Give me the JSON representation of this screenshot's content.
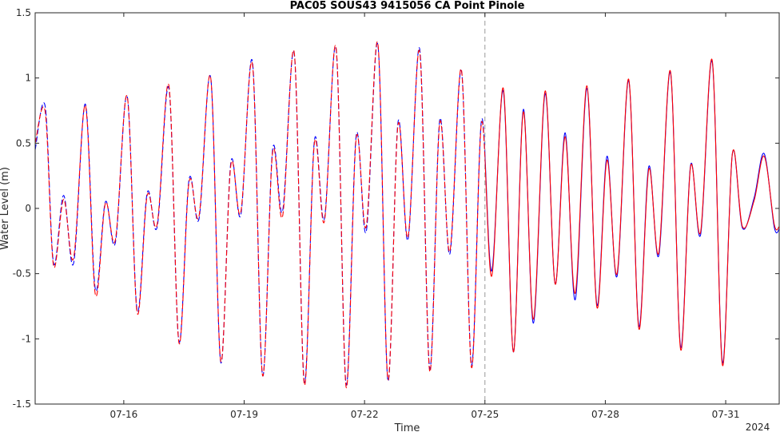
{
  "chart_data": {
    "type": "line",
    "title": "PAC05 SOUS43 9415056 CA Point Pinole",
    "xlabel": "Time",
    "ylabel": "Water Level (m)",
    "year_label": "2024",
    "xlim": [
      "2024-07-13 19:00",
      "2024-08-01 08:00"
    ],
    "ylim": [
      -1.5,
      1.5
    ],
    "x_ticks": [
      "07-16",
      "07-19",
      "07-22",
      "07-25",
      "07-28",
      "07-31"
    ],
    "y_ticks": [
      "1.5",
      "1",
      "0.5",
      "0",
      "-0.5",
      "-1",
      "-1.5"
    ],
    "y_tick_values": [
      1.5,
      1,
      0.5,
      0,
      -0.5,
      -1,
      -1.5
    ],
    "forecast_start": "2024-07-25",
    "grid": false,
    "colors": {
      "observed": "#0000ff",
      "model": "#ff0000",
      "divider": "#999999",
      "axes": "#262626"
    },
    "series": [
      {
        "style": "observed",
        "x": [
          "2024-07-13 19:00",
          "2024-07-14 01:00",
          "2024-07-14 06:00",
          "2024-07-14 12:00",
          "2024-07-14 18:00",
          "2024-07-15 01:00",
          "2024-07-15 07:00",
          "2024-07-15 13:00",
          "2024-07-15 19:00",
          "2024-07-16 02:00",
          "2024-07-16 08:00",
          "2024-07-16 14:00",
          "2024-07-16 20:00",
          "2024-07-17 03:00",
          "2024-07-17 09:00",
          "2024-07-17 15:00",
          "2024-07-17 21:00",
          "2024-07-18 04:00",
          "2024-07-18 10:00",
          "2024-07-18 16:00",
          "2024-07-18 22:00",
          "2024-07-19 05:00",
          "2024-07-19 11:00",
          "2024-07-19 17:00",
          "2024-07-19 23:00",
          "2024-07-20 06:00",
          "2024-07-20 12:00",
          "2024-07-20 18:00",
          "2024-07-21 00:00",
          "2024-07-21 07:00",
          "2024-07-21 13:00",
          "2024-07-21 19:00",
          "2024-07-22 01:00",
          "2024-07-22 08:00",
          "2024-07-22 14:00",
          "2024-07-22 20:00",
          "2024-07-23 02:00",
          "2024-07-23 09:00",
          "2024-07-23 15:00",
          "2024-07-23 21:00",
          "2024-07-24 03:00",
          "2024-07-24 10:00",
          "2024-07-24 16:00",
          "2024-07-24 22:00",
          "2024-07-25 04:00",
          "2024-07-25 11:00",
          "2024-07-25 17:00",
          "2024-07-25 23:00",
          "2024-07-26 05:00",
          "2024-07-26 12:00",
          "2024-07-26 18:00",
          "2024-07-27 00:00",
          "2024-07-27 06:00",
          "2024-07-27 13:00",
          "2024-07-27 19:00",
          "2024-07-28 01:00",
          "2024-07-28 07:00",
          "2024-07-28 14:00",
          "2024-07-28 20:00",
          "2024-07-29 02:00",
          "2024-07-29 08:00",
          "2024-07-29 15:00",
          "2024-07-29 21:00",
          "2024-07-30 03:00",
          "2024-07-30 09:00",
          "2024-07-30 16:00",
          "2024-07-30 22:00",
          "2024-07-31 04:00",
          "2024-07-31 10:00",
          "2024-07-31 17:00",
          "2024-07-31 23:00",
          "2024-08-01 05:00",
          "2024-08-01 08:00"
        ],
        "y": [
          0.45,
          0.78,
          -0.42,
          0.1,
          -0.42,
          0.8,
          -0.62,
          0.05,
          -0.26,
          0.86,
          -0.78,
          0.12,
          -0.14,
          0.92,
          -1.02,
          0.22,
          -0.08,
          1.0,
          -1.18,
          0.35,
          -0.05,
          1.12,
          -1.28,
          0.45,
          -0.02,
          1.18,
          -1.33,
          0.52,
          -0.08,
          1.22,
          -1.35,
          0.56,
          -0.18,
          1.25,
          -1.32,
          0.66,
          -0.24,
          1.22,
          -1.23,
          0.68,
          -0.35,
          1.05,
          -1.2,
          0.68,
          -0.48,
          0.9,
          -1.1,
          0.76,
          -0.88,
          0.88,
          -0.58,
          0.58,
          -0.7,
          0.92,
          -0.74,
          0.4,
          -0.52,
          0.98,
          -0.9,
          0.32,
          -0.36,
          1.04,
          -1.06,
          0.33,
          -0.2,
          1.12,
          -1.18,
          0.42,
          -0.15,
          0.08,
          0.42,
          -0.14,
          -0.16
        ]
      },
      {
        "style": "model",
        "x": [
          "2024-07-13 19:00",
          "2024-07-14 01:00",
          "2024-07-14 06:00",
          "2024-07-14 12:00",
          "2024-07-14 18:00",
          "2024-07-15 01:00",
          "2024-07-15 07:00",
          "2024-07-15 13:00",
          "2024-07-15 19:00",
          "2024-07-16 02:00",
          "2024-07-16 08:00",
          "2024-07-16 14:00",
          "2024-07-16 20:00",
          "2024-07-17 03:00",
          "2024-07-17 09:00",
          "2024-07-17 15:00",
          "2024-07-17 21:00",
          "2024-07-18 04:00",
          "2024-07-18 10:00",
          "2024-07-18 16:00",
          "2024-07-18 22:00",
          "2024-07-19 05:00",
          "2024-07-19 11:00",
          "2024-07-19 17:00",
          "2024-07-19 23:00",
          "2024-07-20 06:00",
          "2024-07-20 12:00",
          "2024-07-20 18:00",
          "2024-07-21 00:00",
          "2024-07-21 07:00",
          "2024-07-21 13:00",
          "2024-07-21 19:00",
          "2024-07-22 01:00",
          "2024-07-22 08:00",
          "2024-07-22 14:00",
          "2024-07-22 20:00",
          "2024-07-23 02:00",
          "2024-07-23 09:00",
          "2024-07-23 15:00",
          "2024-07-23 21:00",
          "2024-07-24 03:00",
          "2024-07-24 10:00",
          "2024-07-24 16:00",
          "2024-07-24 22:00",
          "2024-07-25 04:00",
          "2024-07-25 11:00",
          "2024-07-25 17:00",
          "2024-07-25 23:00",
          "2024-07-26 05:00",
          "2024-07-26 12:00",
          "2024-07-26 18:00",
          "2024-07-27 00:00",
          "2024-07-27 06:00",
          "2024-07-27 13:00",
          "2024-07-27 19:00",
          "2024-07-28 01:00",
          "2024-07-28 07:00",
          "2024-07-28 14:00",
          "2024-07-28 20:00",
          "2024-07-29 02:00",
          "2024-07-29 08:00",
          "2024-07-29 15:00",
          "2024-07-29 21:00",
          "2024-07-30 03:00",
          "2024-07-30 09:00",
          "2024-07-30 16:00",
          "2024-07-30 22:00",
          "2024-07-31 04:00",
          "2024-07-31 10:00",
          "2024-07-31 17:00",
          "2024-07-31 23:00",
          "2024-08-01 05:00",
          "2024-08-01 08:00"
        ],
        "y": [
          0.5,
          0.74,
          -0.44,
          0.07,
          -0.38,
          0.79,
          -0.66,
          0.04,
          -0.24,
          0.86,
          -0.8,
          0.1,
          -0.12,
          0.94,
          -1.03,
          0.2,
          -0.06,
          1.0,
          -1.17,
          0.33,
          -0.03,
          1.1,
          -1.28,
          0.43,
          -0.06,
          1.19,
          -1.35,
          0.5,
          -0.1,
          1.23,
          -1.37,
          0.54,
          -0.14,
          1.26,
          -1.31,
          0.64,
          -0.22,
          1.2,
          -1.25,
          0.66,
          -0.33,
          1.06,
          -1.22,
          0.66,
          -0.52,
          0.92,
          -1.1,
          0.74,
          -0.85,
          0.9,
          -0.58,
          0.55,
          -0.65,
          0.94,
          -0.76,
          0.37,
          -0.5,
          0.99,
          -0.92,
          0.3,
          -0.34,
          1.05,
          -1.08,
          0.32,
          -0.18,
          1.13,
          -1.2,
          0.42,
          -0.14,
          0.06,
          0.4,
          -0.12,
          -0.14
        ]
      }
    ]
  }
}
